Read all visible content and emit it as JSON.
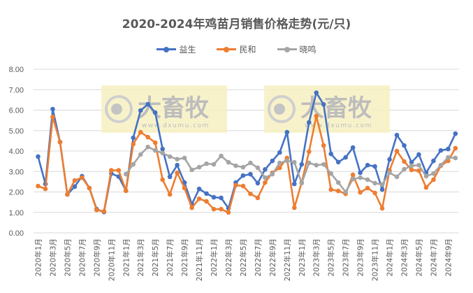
{
  "chart_data": {
    "type": "line",
    "title": "2020-2024年鸡苗月销售价格走势(元/只)",
    "xlabel": "",
    "ylabel": "",
    "ylim": [
      0,
      8
    ],
    "yticks": [
      "0.00",
      "1.00",
      "2.00",
      "3.00",
      "4.00",
      "5.00",
      "6.00",
      "7.00",
      "8.00"
    ],
    "grid": true,
    "legend_position": "top",
    "x": [
      "2020年1月",
      "2020年2月",
      "2020年3月",
      "2020年4月",
      "2020年5月",
      "2020年6月",
      "2020年7月",
      "2020年8月",
      "2020年9月",
      "2020年10月",
      "2020年11月",
      "2020年12月",
      "2021年1月",
      "2021年2月",
      "2021年3月",
      "2021年4月",
      "2021年5月",
      "2021年6月",
      "2021年7月",
      "2021年8月",
      "2021年9月",
      "2021年10月",
      "2021年11月",
      "2021年12月",
      "2022年1月",
      "2022年2月",
      "2022年3月",
      "2022年4月",
      "2022年5月",
      "2022年6月",
      "2022年7月",
      "2022年8月",
      "2022年9月",
      "2022年10月",
      "2022年11月",
      "2022年12月",
      "2023年1月",
      "2023年2月",
      "2023年3月",
      "2023年4月",
      "2023年5月",
      "2023年6月",
      "2023年7月",
      "2023年8月",
      "2023年9月",
      "2023年10月",
      "2023年11月",
      "2023年12月",
      "2024年1月",
      "2024年2月",
      "2024年3月",
      "2024年4月",
      "2024年5月",
      "2024年6月",
      "2024年7月",
      "2024年8月",
      "2024年9月",
      "2024年10月"
    ],
    "xtick_labels": [
      "2020年1月",
      "2020年3月",
      "2020年5月",
      "2020年7月",
      "2020年9月",
      "2020年11月",
      "2021年1月",
      "2021年3月",
      "2021年5月",
      "2021年7月",
      "2021年9月",
      "2021年11月",
      "2022年1月",
      "2022年3月",
      "2022年5月",
      "2022年7月",
      "2022年9月",
      "2022年11月",
      "2023年1月",
      "2023年3月",
      "2023年5月",
      "2023年7月",
      "2023年9月",
      "2023年11月",
      "2024年1月",
      "2024年3月",
      "2024年5月",
      "2024年7月",
      "2024年9月"
    ],
    "series": [
      {
        "name": "益生",
        "color": "#4472C4",
        "values": [
          3.73,
          2.39,
          6.05,
          4.44,
          1.88,
          2.26,
          2.77,
          2.19,
          1.16,
          1.02,
          2.9,
          2.75,
          2.06,
          4.65,
          5.98,
          6.29,
          5.88,
          4.1,
          2.74,
          3.31,
          2.46,
          1.4,
          2.15,
          1.92,
          1.74,
          1.71,
          1.2,
          2.46,
          2.8,
          2.87,
          2.43,
          3.1,
          3.52,
          3.93,
          4.92,
          2.39,
          3.35,
          5.4,
          6.85,
          6.28,
          3.86,
          3.46,
          3.69,
          4.17,
          2.94,
          3.31,
          3.25,
          2.12,
          3.59,
          4.78,
          4.27,
          3.45,
          3.83,
          2.94,
          3.52,
          4.03,
          4.1,
          4.85
        ]
      },
      {
        "name": "民和",
        "color": "#ED7D31",
        "values": [
          2.29,
          2.15,
          5.67,
          4.44,
          1.88,
          2.56,
          2.7,
          2.19,
          1.12,
          1.05,
          3.06,
          3.06,
          2.06,
          4.34,
          4.92,
          4.68,
          4.41,
          2.6,
          1.88,
          2.94,
          2.19,
          1.23,
          1.67,
          1.54,
          1.16,
          1.16,
          1.0,
          2.33,
          2.29,
          1.91,
          1.71,
          2.46,
          2.94,
          3.18,
          3.66,
          1.23,
          2.46,
          3.97,
          5.71,
          4.27,
          2.12,
          2.05,
          1.91,
          2.84,
          1.98,
          2.19,
          1.95,
          1.2,
          3.05,
          4.0,
          3.49,
          3.08,
          3.04,
          2.22,
          2.6,
          3.28,
          3.52,
          4.14
        ]
      },
      {
        "name": "晓鸣",
        "color": "#A5A5A5",
        "values": [
          null,
          null,
          null,
          null,
          null,
          null,
          null,
          null,
          null,
          null,
          null,
          null,
          2.87,
          3.35,
          3.83,
          4.2,
          4.03,
          3.9,
          3.73,
          3.6,
          3.66,
          3.08,
          3.21,
          3.38,
          3.35,
          3.76,
          3.45,
          3.28,
          3.21,
          3.42,
          3.18,
          2.7,
          2.87,
          3.42,
          3.52,
          3.45,
          2.43,
          3.42,
          3.31,
          3.35,
          2.9,
          2.46,
          2.0,
          2.63,
          2.7,
          2.6,
          2.43,
          2.36,
          2.94,
          2.74,
          3.11,
          3.28,
          3.31,
          2.77,
          2.9,
          3.31,
          3.69,
          3.66
        ]
      }
    ]
  },
  "watermark": {
    "brand": "大畜牧",
    "url": "www.dxumu.com",
    "background": "#f7f0c2"
  }
}
